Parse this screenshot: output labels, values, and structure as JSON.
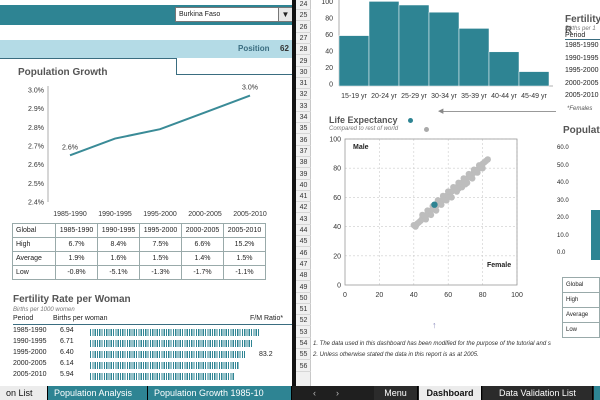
{
  "country_selector": {
    "value": "Burkina Faso",
    "arrow_icon": "dropdown-arrow-icon"
  },
  "position": {
    "label": "Position",
    "value": "62"
  },
  "population_growth": {
    "title": "Population Growth",
    "chart_data": {
      "type": "line",
      "categories": [
        "1985-1990",
        "1990-1995",
        "1995-2000",
        "2000-2005",
        "2005-2010"
      ],
      "values": [
        2.65,
        2.74,
        2.79,
        2.88,
        2.97
      ],
      "data_labels": [
        "2.6%",
        "",
        "",
        "",
        "3.0%"
      ],
      "y_ticks": [
        "2.4%",
        "2.5%",
        "2.6%",
        "2.7%",
        "2.8%",
        "2.9%",
        "3.0%"
      ],
      "ylim": [
        2.4,
        3.0
      ],
      "grid": false,
      "color": "#3a8b97"
    },
    "table": {
      "header": [
        "Global",
        "1985-1990",
        "1990-1995",
        "1995-2000",
        "2000-2005",
        "2005-2010"
      ],
      "rows": [
        [
          "High",
          "6.7%",
          "8.4%",
          "7.5%",
          "6.6%",
          "15.2%"
        ],
        [
          "Average",
          "1.9%",
          "1.6%",
          "1.5%",
          "1.4%",
          "1.5%"
        ],
        [
          "Low",
          "-0.8%",
          "-5.1%",
          "-1.3%",
          "-1.7%",
          "-1.1%"
        ]
      ]
    }
  },
  "fertility_rate": {
    "title": "Fertility Rate per Woman",
    "subtitle": "Births per 1000 women",
    "col_period": "Period",
    "col_births": "Births per woman",
    "col_ratio": "F/M Ratio*",
    "ratio_value": "83.2",
    "rows": [
      {
        "period": "1985-1990",
        "value": "6.94",
        "bar": 6.94
      },
      {
        "period": "1990-1995",
        "value": "6.71",
        "bar": 6.71
      },
      {
        "period": "1995-2000",
        "value": "6.40",
        "bar": 6.4
      },
      {
        "period": "2000-2005",
        "value": "6.14",
        "bar": 6.14
      },
      {
        "period": "2005-2010",
        "value": "5.94",
        "bar": 5.94
      }
    ]
  },
  "age_histogram": {
    "chart_data": {
      "type": "bar",
      "categories": [
        "15-19 yr",
        "20-24 yr",
        "25-29 yr",
        "30-34 yr",
        "35-39 yr",
        "40-44 yr",
        "45-49 yr"
      ],
      "values": [
        140,
        235,
        225,
        205,
        160,
        95,
        40
      ],
      "y_ticks": [
        "100",
        "80",
        "60",
        "40",
        "20",
        "0"
      ],
      "ylim": [
        0,
        250
      ],
      "color": "#2e8493"
    },
    "note": "*Females"
  },
  "fertility_rate_2": {
    "title": "Fertility R",
    "subtitle": "Births per 1",
    "col_period": "Period",
    "periods": [
      "1985-1990",
      "1990-1995",
      "1995-2000",
      "2000-2005",
      "2005-2010"
    ]
  },
  "life_expectancy": {
    "title": "Life Expectancy",
    "subtitle": "Compared to rest of world",
    "chart_data": {
      "type": "scatter",
      "x_ticks": [
        "0",
        "20",
        "40",
        "60",
        "80",
        "100"
      ],
      "y_ticks": [
        "100",
        "80",
        "60",
        "40",
        "20",
        "0"
      ],
      "xlim": [
        0,
        100
      ],
      "ylim": [
        0,
        100
      ],
      "label_male": "Male",
      "label_female": "Female",
      "highlight": {
        "x": 52,
        "y": 55,
        "color": "#2e8493"
      },
      "cloud_color": "#bdbdbd",
      "points": [
        [
          40,
          41
        ],
        [
          42,
          42
        ],
        [
          44,
          44
        ],
        [
          45,
          46
        ],
        [
          46,
          47
        ],
        [
          47,
          47
        ],
        [
          48,
          49
        ],
        [
          49,
          50
        ],
        [
          50,
          51
        ],
        [
          51,
          52
        ],
        [
          52,
          53
        ],
        [
          53,
          54
        ],
        [
          54,
          56
        ],
        [
          55,
          56
        ],
        [
          56,
          57
        ],
        [
          57,
          59
        ],
        [
          58,
          59
        ],
        [
          59,
          61
        ],
        [
          60,
          62
        ],
        [
          61,
          63
        ],
        [
          62,
          64
        ],
        [
          63,
          65
        ],
        [
          64,
          66
        ],
        [
          65,
          67
        ],
        [
          66,
          68
        ],
        [
          67,
          69
        ],
        [
          68,
          70
        ],
        [
          69,
          71
        ],
        [
          70,
          72
        ],
        [
          71,
          73
        ],
        [
          72,
          74
        ],
        [
          73,
          75
        ],
        [
          74,
          76
        ],
        [
          75,
          77
        ],
        [
          76,
          78
        ],
        [
          77,
          79
        ],
        [
          78,
          80
        ],
        [
          79,
          81
        ],
        [
          80,
          83
        ],
        [
          82,
          85
        ],
        [
          47,
          45
        ],
        [
          50,
          48
        ],
        [
          53,
          51
        ],
        [
          56,
          55
        ],
        [
          59,
          58
        ],
        [
          62,
          60
        ],
        [
          65,
          64
        ],
        [
          68,
          67
        ],
        [
          71,
          70
        ],
        [
          74,
          73
        ],
        [
          77,
          77
        ],
        [
          80,
          80
        ],
        [
          45,
          48
        ],
        [
          48,
          51
        ],
        [
          51,
          54
        ],
        [
          54,
          58
        ],
        [
          57,
          61
        ],
        [
          60,
          64
        ],
        [
          63,
          67
        ],
        [
          66,
          70
        ],
        [
          69,
          73
        ],
        [
          72,
          76
        ],
        [
          75,
          79
        ],
        [
          78,
          82
        ],
        [
          81,
          84
        ],
        [
          83,
          86
        ],
        [
          43,
          43
        ],
        [
          41,
          40
        ],
        [
          66,
          66
        ],
        [
          70,
          69
        ]
      ]
    },
    "dot_color": "#2e8493",
    "dot2_color": "#aaaaaa"
  },
  "population_2": {
    "title": "Populat",
    "y_ticks": [
      "60.0",
      "50.0",
      "40.0",
      "30.0",
      "20.0",
      "10.0",
      "0.0"
    ],
    "table_rows": [
      "Global",
      "High",
      "Average",
      "Low"
    ]
  },
  "notes": [
    "1. The data used in this dashboard has been modified for the purpose of the tutorial and s",
    "2. Unless otherwise stated the data in this report is as at 2005."
  ],
  "row_numbers": [
    "24",
    "25",
    "26",
    "27",
    "28",
    "29",
    "30",
    "31",
    "32",
    "33",
    "34",
    "35",
    "36",
    "37",
    "38",
    "39",
    "40",
    "41",
    "42",
    "43",
    "44",
    "45",
    "46",
    "47",
    "48",
    "49",
    "50",
    "51",
    "52",
    "53",
    "54",
    "55",
    "56"
  ],
  "tabs_left": [
    "on List",
    "Population Analysis",
    "Population Growth 1985-10"
  ],
  "tabs_right": [
    "Menu",
    "Dashboard",
    "Data Validation List"
  ],
  "nav": {
    "prev": "‹",
    "next": "›"
  }
}
